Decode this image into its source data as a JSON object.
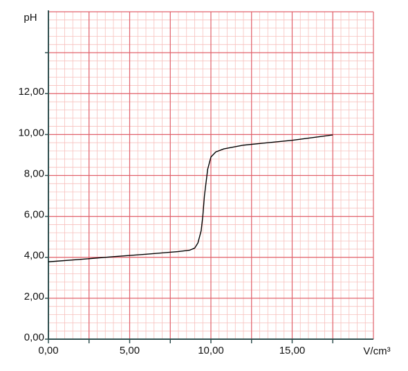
{
  "chart_data": {
    "type": "line",
    "x_label": "V/cm³",
    "y_label": "pH",
    "xlim": [
      0,
      20
    ],
    "ylim": [
      0,
      16
    ],
    "xticks": [
      {
        "value": 0,
        "label": "0,00"
      },
      {
        "value": 5,
        "label": "5,00"
      },
      {
        "value": 10,
        "label": "10,00"
      },
      {
        "value": 15,
        "label": "15,00"
      }
    ],
    "x_unlabeled_ticks": [
      2.5,
      7.5,
      12.5,
      17.5
    ],
    "yticks": [
      {
        "value": 0,
        "label": "0,00"
      },
      {
        "value": 2,
        "label": "2,00"
      },
      {
        "value": 4,
        "label": "4,00"
      },
      {
        "value": 6,
        "label": "6,00"
      },
      {
        "value": 8,
        "label": "8,00"
      },
      {
        "value": 10,
        "label": "10,00"
      },
      {
        "value": 12,
        "label": "12,00"
      }
    ],
    "y_unlabeled_ticks": [
      14
    ],
    "grid": {
      "x_major": 2.5,
      "x_minor": 0.5,
      "y_major": 2,
      "y_minor": 0.4,
      "major_color": "#e0606a",
      "minor_color": "#f7c0bd"
    },
    "series": [
      {
        "color": "#000000",
        "x": [
          0,
          2,
          4,
          6,
          8,
          8.7,
          9.0,
          9.2,
          9.4,
          9.5,
          9.6,
          9.8,
          10.0,
          10.3,
          10.8,
          12,
          15,
          17.5
        ],
        "values": [
          3.78,
          3.9,
          4.03,
          4.15,
          4.28,
          4.35,
          4.45,
          4.7,
          5.3,
          6.0,
          7.0,
          8.3,
          8.9,
          9.15,
          9.3,
          9.48,
          9.72,
          9.98
        ]
      }
    ]
  }
}
